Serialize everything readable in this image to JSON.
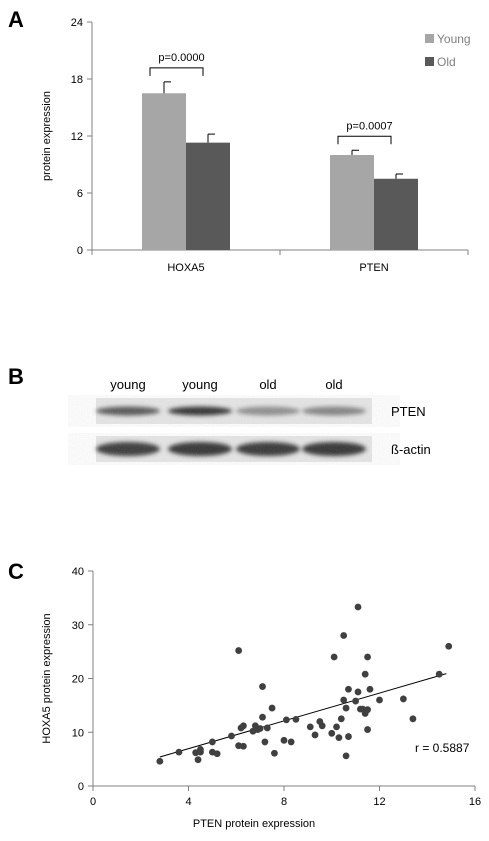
{
  "panels": {
    "a": {
      "letter": "A",
      "chart_data": {
        "type": "bar",
        "categories": [
          "HOXA5",
          "PTEN"
        ],
        "series": [
          {
            "name": "Young",
            "color": "#a6a6a6",
            "values": [
              16.5,
              10.0
            ],
            "errors": [
              1.2,
              0.5
            ]
          },
          {
            "name": "Old",
            "color": "#595959",
            "values": [
              11.3,
              7.5
            ],
            "errors": [
              0.9,
              0.5
            ]
          }
        ],
        "ylabel": "protein expression",
        "ylim": [
          0,
          24
        ],
        "yticks": [
          0,
          6,
          12,
          18,
          24
        ],
        "legend": "top-right",
        "annotations": [
          {
            "category": "HOXA5",
            "text": "p=0.0000"
          },
          {
            "category": "PTEN",
            "text": "p=0.0007"
          }
        ]
      }
    },
    "b": {
      "letter": "B",
      "lanes": [
        "young",
        "young",
        "old",
        "old"
      ],
      "rows": [
        {
          "label": "PTEN",
          "intensity": [
            0.72,
            0.9,
            0.45,
            0.5
          ]
        },
        {
          "label": "ß-actin",
          "intensity": [
            0.85,
            0.88,
            0.86,
            0.88
          ]
        }
      ]
    },
    "c": {
      "letter": "C",
      "chart_data": {
        "type": "scatter",
        "xlabel": "PTEN protein expression",
        "ylabel": "HOXA5  protein expression",
        "xlim": [
          0,
          16
        ],
        "ylim": [
          0,
          40
        ],
        "xticks": [
          0,
          4,
          8,
          12,
          16
        ],
        "yticks": [
          0,
          10,
          20,
          30,
          40
        ],
        "annotation": "r = 0.5887",
        "trendline": {
          "x": [
            2.8,
            14.8
          ],
          "y": [
            5.4,
            20.9
          ]
        },
        "points": [
          [
            2.8,
            4.6
          ],
          [
            3.6,
            6.3
          ],
          [
            4.3,
            6.2
          ],
          [
            4.4,
            4.9
          ],
          [
            4.5,
            6.8
          ],
          [
            4.5,
            6.3
          ],
          [
            5.0,
            6.3
          ],
          [
            5.0,
            8.2
          ],
          [
            5.2,
            6.0
          ],
          [
            5.8,
            9.3
          ],
          [
            6.1,
            25.2
          ],
          [
            6.1,
            7.5
          ],
          [
            6.2,
            10.8
          ],
          [
            6.3,
            7.4
          ],
          [
            6.3,
            11.2
          ],
          [
            6.7,
            10.2
          ],
          [
            6.8,
            11.2
          ],
          [
            6.9,
            10.5
          ],
          [
            7.0,
            10.7
          ],
          [
            7.1,
            18.5
          ],
          [
            7.1,
            12.8
          ],
          [
            7.2,
            8.2
          ],
          [
            7.3,
            10.8
          ],
          [
            7.5,
            14.5
          ],
          [
            7.6,
            6.1
          ],
          [
            8.0,
            8.5
          ],
          [
            8.1,
            12.3
          ],
          [
            8.3,
            8.2
          ],
          [
            8.5,
            12.4
          ],
          [
            9.1,
            11.0
          ],
          [
            9.3,
            9.5
          ],
          [
            9.5,
            12.0
          ],
          [
            9.6,
            11.2
          ],
          [
            10.0,
            9.8
          ],
          [
            10.1,
            24.0
          ],
          [
            10.2,
            11.0
          ],
          [
            10.3,
            9.0
          ],
          [
            10.4,
            12.5
          ],
          [
            10.5,
            28.0
          ],
          [
            10.5,
            16.0
          ],
          [
            10.6,
            5.6
          ],
          [
            10.6,
            14.5
          ],
          [
            10.7,
            18.0
          ],
          [
            10.7,
            9.2
          ],
          [
            11.0,
            15.8
          ],
          [
            11.1,
            33.3
          ],
          [
            11.1,
            17.5
          ],
          [
            11.2,
            14.3
          ],
          [
            11.3,
            14.3
          ],
          [
            11.4,
            20.8
          ],
          [
            11.4,
            13.5
          ],
          [
            11.5,
            10.5
          ],
          [
            11.5,
            14.2
          ],
          [
            11.5,
            24.0
          ],
          [
            11.6,
            18.0
          ],
          [
            12.0,
            16.0
          ],
          [
            13.0,
            16.2
          ],
          [
            13.4,
            12.5
          ],
          [
            14.5,
            20.8
          ],
          [
            14.9,
            26.0
          ]
        ]
      }
    }
  }
}
